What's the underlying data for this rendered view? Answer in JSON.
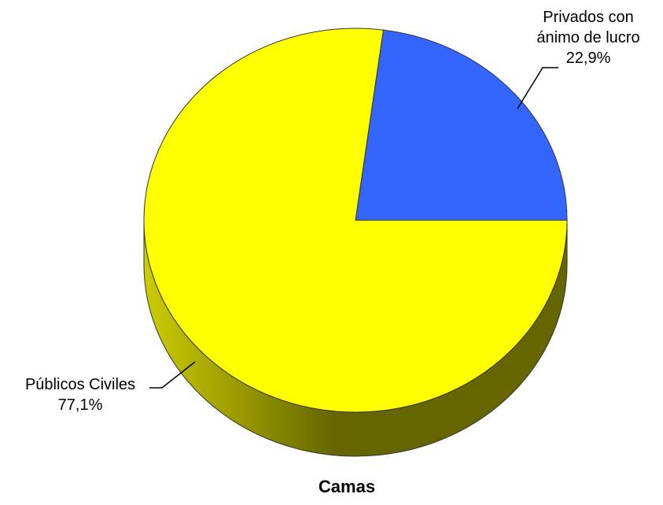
{
  "chart_data": {
    "type": "pie",
    "title": "Camas",
    "series": [
      {
        "name": "Privados con ánimo de lucro",
        "label_lines": [
          "Privados con",
          "ánimo de lucro"
        ],
        "value": 22.9,
        "value_label": "22,9%",
        "color": "#3366FF"
      },
      {
        "name": "Públicos Civiles",
        "label_lines": [
          "Públicos Civiles"
        ],
        "value": 77.1,
        "value_label": "77,1%",
        "color": "#FFFF00"
      }
    ],
    "style": "3d",
    "legend": "none"
  },
  "colors": {
    "outline": "#333333",
    "side_light": "#CCCC00",
    "side_dark": "#666600"
  }
}
